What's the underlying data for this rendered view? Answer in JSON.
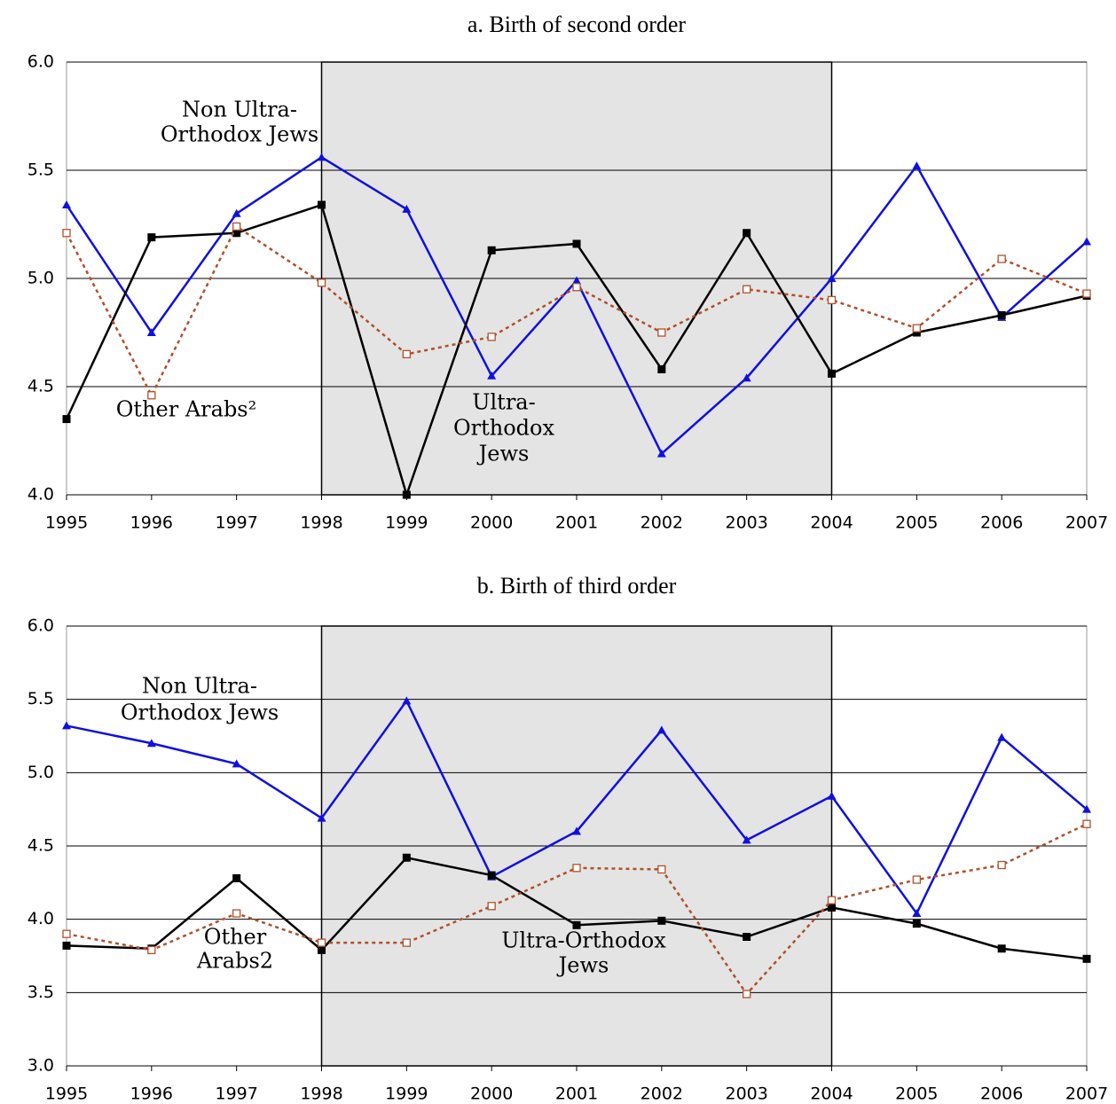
{
  "chart_data": [
    {
      "type": "line",
      "title": "a. Birth of second order",
      "x": [
        1995,
        1996,
        1997,
        1998,
        1999,
        2000,
        2001,
        2002,
        2003,
        2004,
        2005,
        2006,
        2007
      ],
      "xlim": [
        1995,
        2007
      ],
      "xticks": [
        1995,
        1996,
        1997,
        1998,
        1999,
        2000,
        2001,
        2002,
        2003,
        2004,
        2005,
        2006,
        2007
      ],
      "ylim": [
        4.0,
        6.0
      ],
      "yticks": [
        {
          "value": 4,
          "label": "4.0"
        },
        4.5,
        {
          "value": 5,
          "label": "5.0"
        },
        5.5,
        {
          "value": 6,
          "label": "6.0"
        }
      ],
      "grid": true,
      "highlight_x": [
        1998,
        2004
      ],
      "series": [
        {
          "color": "#1010e0",
          "marker": "triangle",
          "values": [
            5.34,
            4.75,
            5.3,
            5.56,
            5.32,
            4.55,
            4.99,
            4.19,
            4.54,
            5.0,
            5.52,
            4.82,
            5.17
          ]
        },
        {
          "color": "#000000",
          "marker": "square",
          "values": [
            4.35,
            5.19,
            5.21,
            5.34,
            4.0,
            5.13,
            5.16,
            4.58,
            5.21,
            4.56,
            4.75,
            4.83,
            4.92
          ]
        },
        {
          "color": "#b0502a",
          "marker": "open-square",
          "dashed": true,
          "values": [
            5.21,
            4.46,
            5.24,
            4.98,
            4.65,
            4.73,
            4.96,
            4.75,
            4.95,
            4.9,
            4.77,
            5.09,
            4.93
          ]
        }
      ],
      "annotations": [
        [
          "Non Ultra-",
          "Orthodox Jews"
        ],
        [
          "Other Arabs²"
        ],
        [
          "Ultra-",
          "Orthodox",
          "Jews"
        ]
      ]
    },
    {
      "type": "line",
      "title": "b. Birth of third order",
      "x": [
        1995,
        1996,
        1997,
        1998,
        1999,
        2000,
        2001,
        2002,
        2003,
        2004,
        2005,
        2006,
        2007
      ],
      "xlim": [
        1995,
        2007
      ],
      "xticks": [
        1995,
        1996,
        1997,
        1998,
        1999,
        2000,
        2001,
        2002,
        2003,
        2004,
        2005,
        2006,
        2007
      ],
      "ylim": [
        3.0,
        6.0
      ],
      "yticks": [
        {
          "value": 3,
          "label": "3.0"
        },
        3.5,
        {
          "value": 4,
          "label": "4.0"
        },
        4.5,
        {
          "value": 5,
          "label": "5.0"
        },
        5.5,
        {
          "value": 6,
          "label": "6.0"
        }
      ],
      "grid": true,
      "highlight_x": [
        1998,
        2004
      ],
      "series": [
        {
          "color": "#1010e0",
          "marker": "triangle",
          "values": [
            5.32,
            5.2,
            5.06,
            4.69,
            5.49,
            4.29,
            4.6,
            5.29,
            4.54,
            4.84,
            4.04,
            5.24,
            4.75
          ]
        },
        {
          "color": "#000000",
          "marker": "square",
          "values": [
            3.82,
            3.8,
            4.28,
            3.79,
            4.42,
            4.3,
            3.96,
            3.99,
            3.88,
            4.08,
            3.97,
            3.8,
            3.73
          ]
        },
        {
          "color": "#b0502a",
          "marker": "open-square",
          "dashed": true,
          "values": [
            3.9,
            3.79,
            4.04,
            3.84,
            3.84,
            4.09,
            4.35,
            4.34,
            3.49,
            4.13,
            4.27,
            4.37,
            4.65
          ]
        }
      ],
      "annotations": [
        [
          "Non Ultra-",
          "Orthodox Jews"
        ],
        [
          "Other",
          "Arabs2"
        ],
        [
          "Ultra-Orthodox",
          "Jews"
        ]
      ]
    }
  ]
}
